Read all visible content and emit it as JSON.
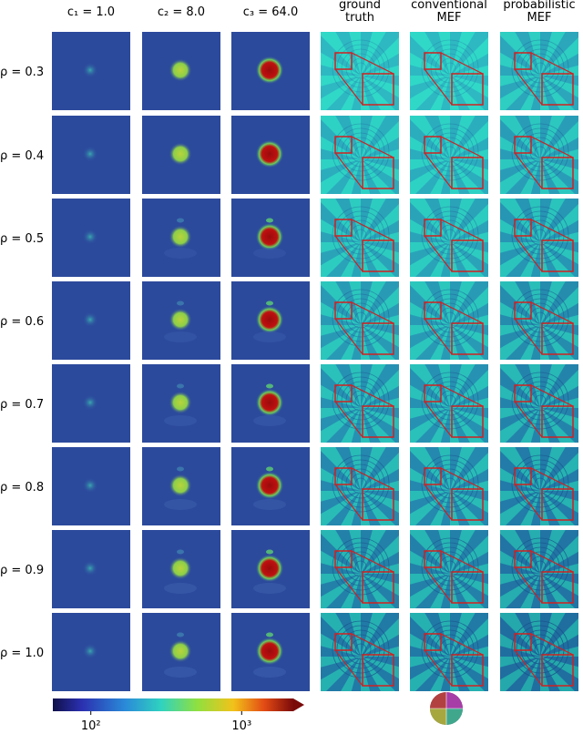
{
  "columns": [
    [
      "c₁ = 1.0"
    ],
    [
      "c₂ = 8.0"
    ],
    [
      "c₃ = 64.0"
    ],
    [
      "ground",
      "truth"
    ],
    [
      "conventional",
      "MEF"
    ],
    [
      "probabilistic",
      "MEF"
    ]
  ],
  "rows": [
    "ρ = 0.3",
    "ρ = 0.4",
    "ρ = 0.5",
    "ρ = 0.6",
    "ρ = 0.7",
    "ρ = 0.8",
    "ρ = 0.9",
    "ρ = 1.0"
  ],
  "colorbar": {
    "scale": "log",
    "lim": [
      56,
      2200
    ],
    "ticks": [
      {
        "value": 100,
        "label": "10²"
      },
      {
        "value": 1000,
        "label": "10³"
      }
    ]
  }
}
